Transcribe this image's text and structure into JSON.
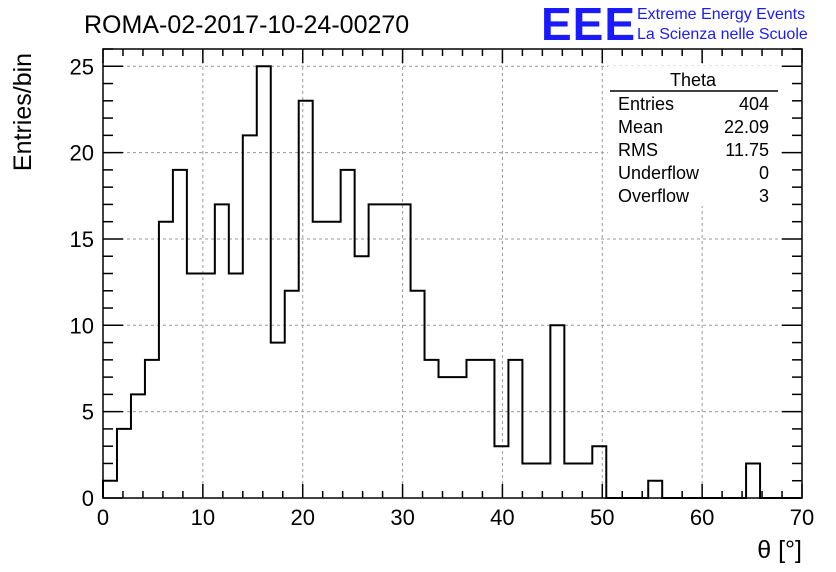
{
  "logo": {
    "letters": "EEE",
    "line1": "Extreme Energy Events",
    "line2": "La Scienza nelle Scuole",
    "color": "#1a1aff"
  },
  "stats": {
    "title": "Theta",
    "rows": [
      {
        "label": "Entries",
        "value": "404"
      },
      {
        "label": "Mean",
        "value": "22.09"
      },
      {
        "label": "RMS",
        "value": "11.75"
      },
      {
        "label": "Underflow",
        "value": "0"
      },
      {
        "label": "Overflow",
        "value": "3"
      }
    ]
  },
  "chart_data": {
    "type": "histogram",
    "title": "ROMA-02-2017-10-24-00270",
    "xlabel": "θ [°]",
    "ylabel": "Entries/bin",
    "xlim": [
      0,
      70
    ],
    "ylim": [
      0,
      26
    ],
    "xticks": [
      0,
      10,
      20,
      30,
      40,
      50,
      60,
      70
    ],
    "yticks": [
      0,
      5,
      10,
      15,
      20,
      25
    ],
    "grid": true,
    "line_color": "#000000",
    "bin_width": 1.4,
    "bin_start": 0,
    "values": [
      1,
      4,
      6,
      8,
      16,
      19,
      13,
      13,
      17,
      13,
      21,
      25,
      9,
      12,
      23,
      16,
      16,
      19,
      14,
      17,
      17,
      17,
      12,
      8,
      7,
      7,
      8,
      8,
      3,
      8,
      2,
      2,
      10,
      2,
      2,
      3,
      0,
      0,
      0,
      1,
      0,
      0,
      0,
      0,
      0,
      0,
      2,
      0,
      0,
      0
    ]
  }
}
